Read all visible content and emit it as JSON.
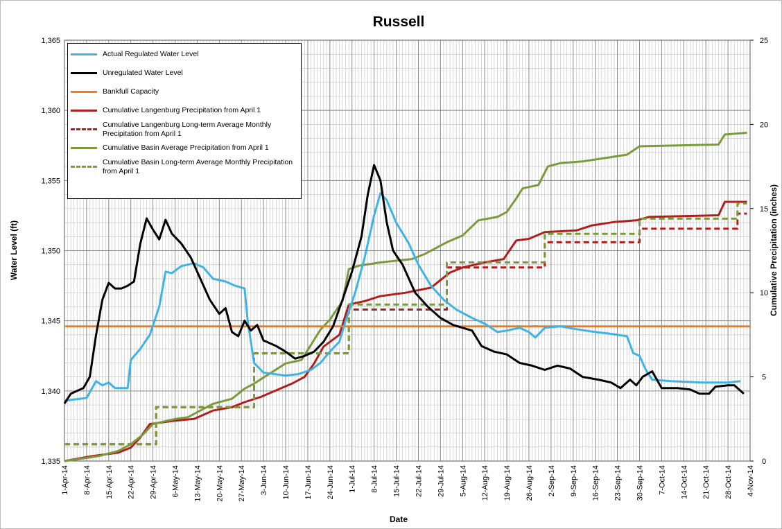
{
  "chart_data": {
    "type": "line",
    "title": "Russell",
    "x_label": "Date",
    "y_label": "Water Level (ft)",
    "y2_label": "Cumulative Precipitation (inches)",
    "xlim": [
      "1-Apr-14",
      "4-Nov-14"
    ],
    "xticks": [
      "1-Apr-14",
      "8-Apr-14",
      "15-Apr-14",
      "22-Apr-14",
      "29-Apr-14",
      "6-May-14",
      "13-May-14",
      "20-May-14",
      "27-May-14",
      "3-Jun-14",
      "10-Jun-14",
      "17-Jun-14",
      "24-Jun-14",
      "1-Jul-14",
      "8-Jul-14",
      "15-Jul-14",
      "22-Jul-14",
      "29-Jul-14",
      "5-Aug-14",
      "12-Aug-14",
      "19-Aug-14",
      "26-Aug-14",
      "2-Sep-14",
      "9-Sep-14",
      "16-Sep-14",
      "23-Sep-14",
      "30-Sep-14",
      "7-Oct-14",
      "14-Oct-14",
      "21-Oct-14",
      "28-Oct-14",
      "4-Nov-14"
    ],
    "ylim": [
      1335,
      1365
    ],
    "yticks": [
      {
        "value": 1335,
        "label": "1,335"
      },
      {
        "value": 1340,
        "label": "1,340"
      },
      {
        "value": 1345,
        "label": "1,345"
      },
      {
        "value": 1350,
        "label": "1,350"
      },
      {
        "value": 1355,
        "label": "1,355"
      },
      {
        "value": 1360,
        "label": "1,360"
      },
      {
        "value": 1365,
        "label": "1,365"
      }
    ],
    "y2lim": [
      0,
      25
    ],
    "y2ticks": [
      0,
      5,
      10,
      15,
      20,
      25
    ],
    "grid": true,
    "legend": "upper left",
    "series": [
      {
        "name": "Actual Regulated Water Level",
        "color": "#3fb4e4",
        "dash": false,
        "x": [
          "1-Apr-14",
          "8-Apr-14",
          "11-Apr-14",
          "13-Apr-14",
          "15-Apr-14",
          "17-Apr-14",
          "21-Apr-14",
          "22-Apr-14",
          "25-Apr-14",
          "28-Apr-14",
          "1-May-14",
          "3-May-14",
          "5-May-14",
          "8-May-14",
          "12-May-14",
          "15-May-14",
          "18-May-14",
          "22-May-14",
          "25-May-14",
          "28-May-14",
          "29-May-14",
          "31-May-14",
          "3-Jun-14",
          "10-Jun-14",
          "14-Jun-14",
          "18-Jun-14",
          "21-Jun-14",
          "24-Jun-14",
          "27-Jun-14",
          "29-Jun-14",
          "2-Jul-14",
          "5-Jul-14",
          "8-Jul-14",
          "10-Jul-14",
          "12-Jul-14",
          "15-Jul-14",
          "19-Jul-14",
          "22-Jul-14",
          "26-Jul-14",
          "30-Jul-14",
          "3-Aug-14",
          "8-Aug-14",
          "12-Aug-14",
          "16-Aug-14",
          "19-Aug-14",
          "23-Aug-14",
          "26-Aug-14",
          "28-Aug-14",
          "31-Aug-14",
          "5-Sep-14",
          "10-Sep-14",
          "16-Sep-14",
          "20-Sep-14",
          "26-Sep-14",
          "28-Sep-14",
          "30-Sep-14",
          "2-Oct-14",
          "4-Oct-14",
          "10-Oct-14",
          "20-Oct-14",
          "28-Oct-14",
          "1-Nov-14"
        ],
        "values": [
          1339.3,
          1339.5,
          1340.7,
          1340.4,
          1340.6,
          1340.2,
          1340.2,
          1342.2,
          1343,
          1344,
          1346,
          1348.5,
          1348.4,
          1348.9,
          1349.1,
          1348.8,
          1348,
          1347.8,
          1347.5,
          1347.3,
          1345,
          1342,
          1341.3,
          1341.1,
          1341.2,
          1341.5,
          1342,
          1342.8,
          1343.5,
          1345,
          1347,
          1349.5,
          1352.5,
          1354.1,
          1353.6,
          1352,
          1350.5,
          1349,
          1347.5,
          1346.5,
          1345.8,
          1345.2,
          1344.8,
          1344.2,
          1344.3,
          1344.5,
          1344.2,
          1343.8,
          1344.5,
          1344.6,
          1344.4,
          1344.2,
          1344.1,
          1343.9,
          1342.7,
          1342.5,
          1341.5,
          1340.8,
          1340.7,
          1340.6,
          1340.6,
          1340.7
        ]
      },
      {
        "name": "Unregulated Water Level",
        "color": "#000000",
        "dash": false,
        "x": [
          "1-Apr-14",
          "3-Apr-14",
          "5-Apr-14",
          "7-Apr-14",
          "9-Apr-14",
          "11-Apr-14",
          "13-Apr-14",
          "15-Apr-14",
          "17-Apr-14",
          "19-Apr-14",
          "21-Apr-14",
          "23-Apr-14",
          "25-Apr-14",
          "27-Apr-14",
          "29-Apr-14",
          "1-May-14",
          "3-May-14",
          "5-May-14",
          "8-May-14",
          "11-May-14",
          "14-May-14",
          "17-May-14",
          "20-May-14",
          "22-May-14",
          "24-May-14",
          "26-May-14",
          "28-May-14",
          "30-May-14",
          "1-Jun-14",
          "3-Jun-14",
          "7-Jun-14",
          "10-Jun-14",
          "13-Jun-14",
          "16-Jun-14",
          "19-Jun-14",
          "22-Jun-14",
          "25-Jun-14",
          "28-Jun-14",
          "1-Jul-14",
          "4-Jul-14",
          "6-Jul-14",
          "8-Jul-14",
          "10-Jul-14",
          "12-Jul-14",
          "14-Jul-14",
          "17-Jul-14",
          "21-Jul-14",
          "25-Jul-14",
          "29-Jul-14",
          "2-Aug-14",
          "5-Aug-14",
          "8-Aug-14",
          "11-Aug-14",
          "15-Aug-14",
          "19-Aug-14",
          "23-Aug-14",
          "27-Aug-14",
          "31-Aug-14",
          "4-Sep-14",
          "8-Sep-14",
          "12-Sep-14",
          "17-Sep-14",
          "21-Sep-14",
          "24-Sep-14",
          "27-Sep-14",
          "29-Sep-14",
          "1-Oct-14",
          "4-Oct-14",
          "7-Oct-14",
          "12-Oct-14",
          "16-Oct-14",
          "19-Oct-14",
          "22-Oct-14",
          "24-Oct-14",
          "28-Oct-14",
          "30-Oct-14",
          "2-Nov-14"
        ],
        "values": [
          1339.1,
          1339.8,
          1340,
          1340.2,
          1341,
          1344,
          1346.5,
          1347.7,
          1347.3,
          1347.3,
          1347.5,
          1347.8,
          1350.5,
          1352.3,
          1351.5,
          1350.8,
          1352.2,
          1351.2,
          1350.5,
          1349.5,
          1348,
          1346.5,
          1345.5,
          1345.9,
          1344.2,
          1343.9,
          1345,
          1344.3,
          1344.7,
          1343.6,
          1343.2,
          1342.8,
          1342.3,
          1342.5,
          1342.8,
          1343.5,
          1344.6,
          1346.5,
          1348.5,
          1351,
          1354,
          1356.1,
          1355,
          1352,
          1350,
          1349,
          1347,
          1346,
          1345.2,
          1344.7,
          1344.5,
          1344.3,
          1343.2,
          1342.8,
          1342.6,
          1342,
          1341.8,
          1341.5,
          1341.8,
          1341.6,
          1341,
          1340.8,
          1340.6,
          1340.2,
          1340.8,
          1340.4,
          1341,
          1341.4,
          1340.2,
          1340.2,
          1340.1,
          1339.8,
          1339.8,
          1340.3,
          1340.4,
          1340.4,
          1339.8
        ]
      },
      {
        "name": "Bankfull Capacity",
        "color": "#f07c1e",
        "dash": false,
        "x": [
          "1-Apr-14",
          "4-Nov-14"
        ],
        "values": [
          1344.6,
          1344.6
        ]
      },
      {
        "name": "Cumulative Langenburg Precipitation from April 1",
        "color": "#b01e1e",
        "dash": false,
        "axis": "y2",
        "x": [
          "1-Apr-14",
          "10-Apr-14",
          "18-Apr-14",
          "22-Apr-14",
          "25-Apr-14",
          "28-Apr-14",
          "6-May-14",
          "12-May-14",
          "18-May-14",
          "24-May-14",
          "28-May-14",
          "2-Jun-14",
          "7-Jun-14",
          "12-Jun-14",
          "16-Jun-14",
          "19-Jun-14",
          "22-Jun-14",
          "27-Jun-14",
          "30-Jun-14",
          "5-Jul-14",
          "10-Jul-14",
          "18-Jul-14",
          "26-Jul-14",
          "1-Aug-14",
          "5-Aug-14",
          "12-Aug-14",
          "18-Aug-14",
          "22-Aug-14",
          "26-Aug-14",
          "31-Aug-14",
          "10-Sep-14",
          "15-Sep-14",
          "22-Sep-14",
          "29-Sep-14",
          "3-Oct-14",
          "25-Oct-14",
          "27-Oct-14",
          "3-Nov-14"
        ],
        "values": [
          0,
          0.3,
          0.5,
          0.8,
          1.4,
          2.2,
          2.4,
          2.5,
          3,
          3.2,
          3.5,
          3.8,
          4.2,
          4.6,
          5,
          5.8,
          6.8,
          7.5,
          9.3,
          9.5,
          9.8,
          10,
          10.3,
          11.2,
          11.5,
          11.8,
          12,
          13.1,
          13.2,
          13.6,
          13.7,
          14,
          14.2,
          14.3,
          14.5,
          14.6,
          15.4,
          15.4
        ]
      },
      {
        "name": "Cumulative Langenburg Long-term Average Monthly Precipitation from April 1",
        "color": "#b01e1e",
        "dash": true,
        "axis": "y2",
        "x": [
          "1-Apr-14",
          "30-Apr-14",
          "30-Apr-14",
          "31-May-14",
          "31-May-14",
          "30-Jun-14",
          "30-Jun-14",
          "31-Jul-14",
          "31-Jul-14",
          "31-Aug-14",
          "31-Aug-14",
          "30-Sep-14",
          "30-Sep-14",
          "31-Oct-14",
          "31-Oct-14",
          "3-Nov-14"
        ],
        "values": [
          1,
          1,
          3.2,
          3.2,
          6.4,
          6.4,
          9,
          9,
          11.5,
          11.5,
          13,
          13,
          13.8,
          13.8,
          14.7,
          14.7
        ]
      },
      {
        "name": "Cumulative Basin Average Precipitation from April 1",
        "color": "#7a9a3c",
        "dash": false,
        "axis": "y2",
        "x": [
          "1-Apr-14",
          "5-Apr-14",
          "12-Apr-14",
          "18-Apr-14",
          "22-Apr-14",
          "26-Apr-14",
          "29-Apr-14",
          "6-May-14",
          "10-May-14",
          "18-May-14",
          "24-May-14",
          "28-May-14",
          "31-May-14",
          "5-Jun-14",
          "10-Jun-14",
          "15-Jun-14",
          "18-Jun-14",
          "21-Jun-14",
          "24-Jun-14",
          "28-Jun-14",
          "30-Jun-14",
          "3-Jul-14",
          "10-Jul-14",
          "20-Jul-14",
          "24-Jul-14",
          "31-Jul-14",
          "5-Aug-14",
          "10-Aug-14",
          "16-Aug-14",
          "19-Aug-14",
          "22-Aug-14",
          "24-Aug-14",
          "29-Aug-14",
          "1-Sep-14",
          "5-Sep-14",
          "12-Sep-14",
          "19-Sep-14",
          "26-Sep-14",
          "30-Sep-14",
          "25-Oct-14",
          "27-Oct-14",
          "3-Nov-14"
        ],
        "values": [
          0,
          0.1,
          0.3,
          0.6,
          1,
          1.6,
          2.2,
          2.5,
          2.6,
          3.4,
          3.7,
          4.3,
          4.6,
          5.2,
          5.8,
          6,
          6.9,
          7.8,
          8.4,
          9.5,
          11.4,
          11.6,
          11.8,
          12,
          12.3,
          13,
          13.4,
          14.3,
          14.5,
          14.8,
          15.6,
          16.2,
          16.4,
          17.5,
          17.7,
          17.8,
          18,
          18.2,
          18.7,
          18.8,
          19.4,
          19.5
        ]
      },
      {
        "name": "Cumulative Basin Long-term Average Monthly Precipitation from April 1",
        "color": "#7a9a3c",
        "dash": true,
        "axis": "y2",
        "x": [
          "1-Apr-14",
          "30-Apr-14",
          "30-Apr-14",
          "31-May-14",
          "31-May-14",
          "30-Jun-14",
          "30-Jun-14",
          "31-Jul-14",
          "31-Jul-14",
          "31-Aug-14",
          "31-Aug-14",
          "30-Sep-14",
          "30-Sep-14",
          "31-Oct-14",
          "31-Oct-14",
          "3-Nov-14"
        ],
        "values": [
          1,
          1,
          3.2,
          3.2,
          6.4,
          6.4,
          9.3,
          9.3,
          11.8,
          11.8,
          13.5,
          13.5,
          14.4,
          14.4,
          15.3,
          15.3
        ]
      }
    ]
  }
}
